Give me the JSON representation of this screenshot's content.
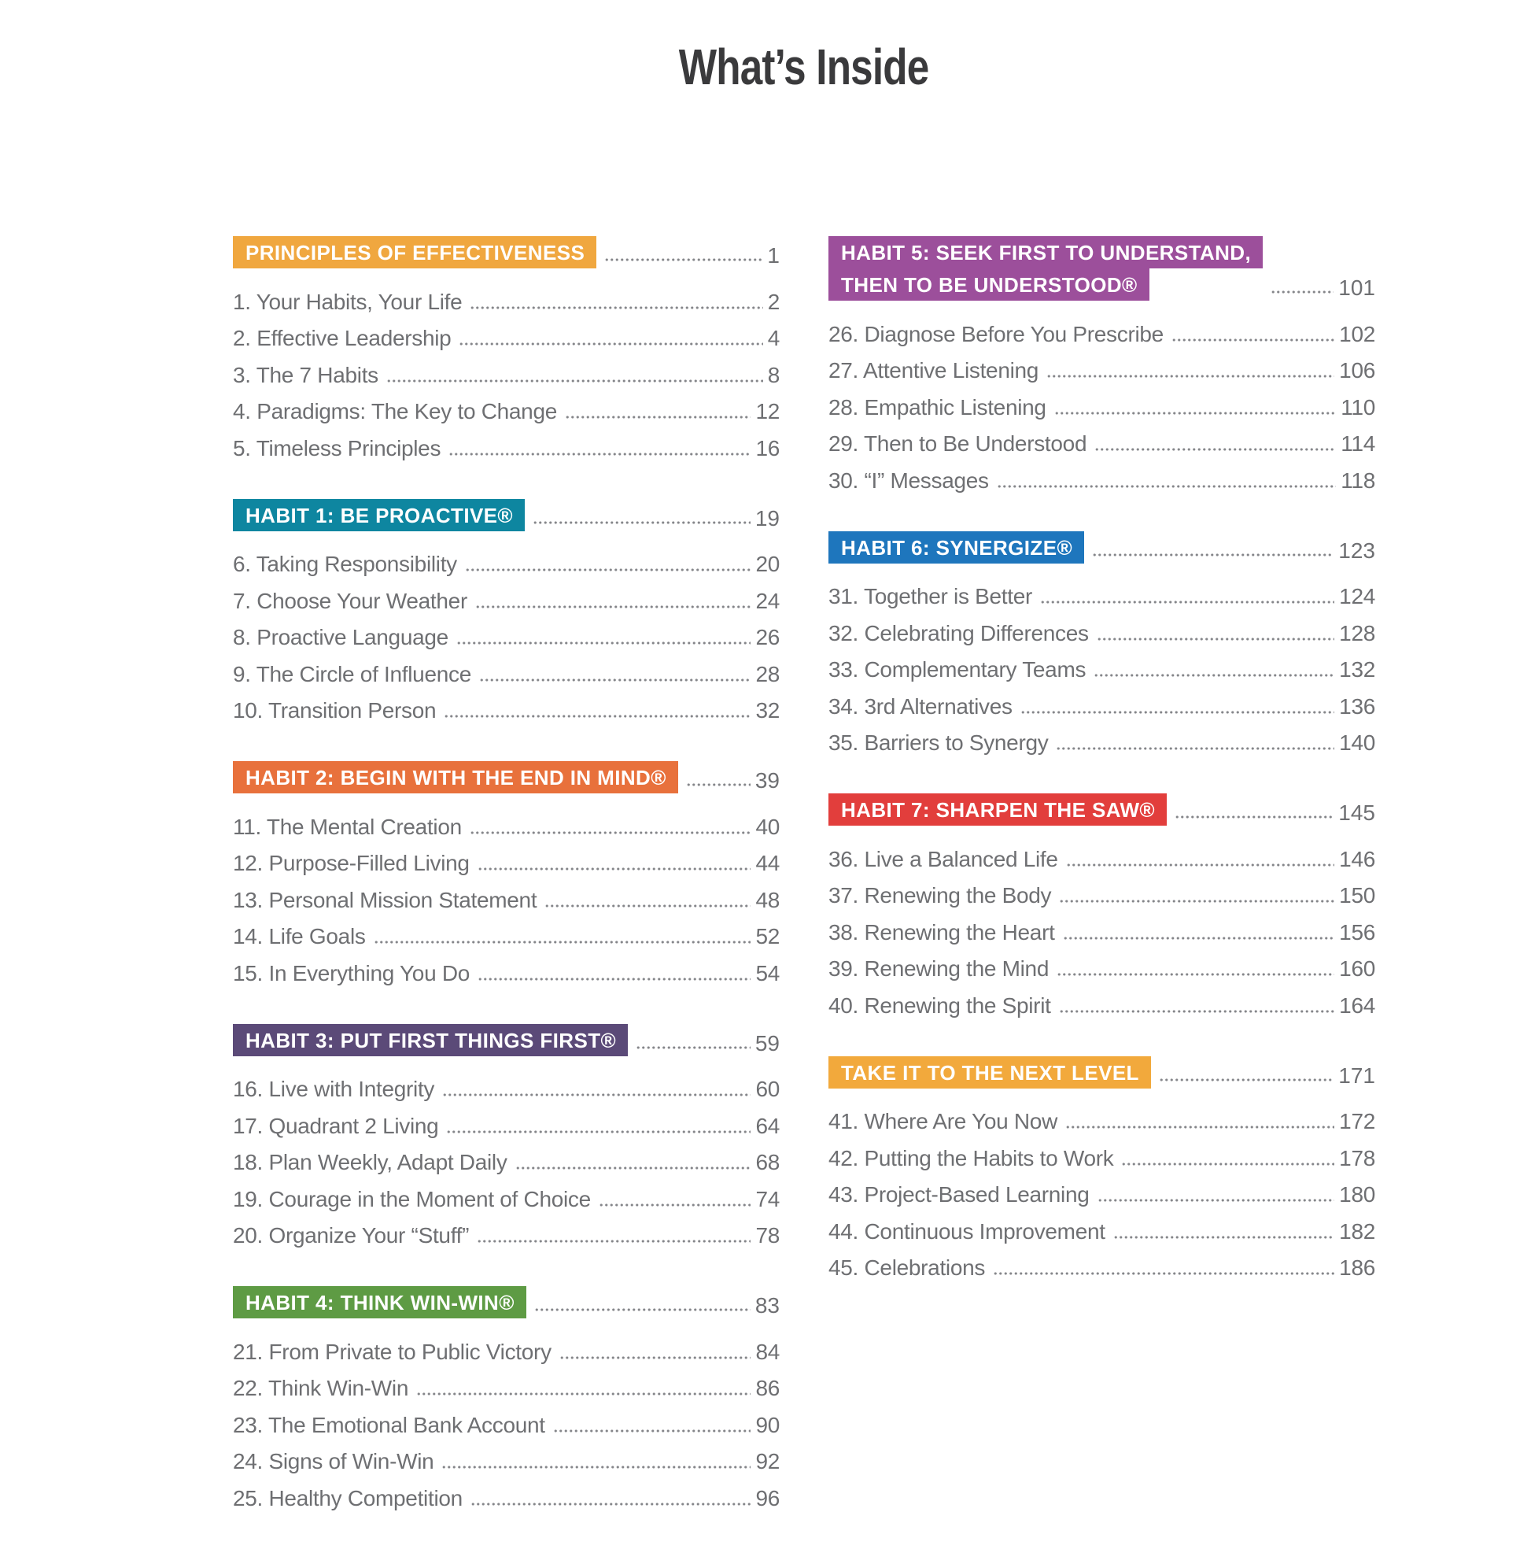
{
  "page_title": "What’s Inside",
  "text_colors": {
    "title": "#3a3a3c",
    "entry": "#6e6f72",
    "badge_text": "#ffffff"
  },
  "toc": {
    "columns": [
      {
        "sections": [
          {
            "header_lines": [
              "PRINCIPLES OF EFFECTIVENESS"
            ],
            "page": "1",
            "color": "#F0A73F",
            "entries": [
              {
                "label": "1. Your Habits, Your Life",
                "page": "2"
              },
              {
                "label": "2. Effective Leadership",
                "page": "4"
              },
              {
                "label": "3. The 7 Habits",
                "page": "8"
              },
              {
                "label": "4. Paradigms: The Key to Change",
                "page": "12"
              },
              {
                "label": "5. Timeless Principles",
                "page": "16"
              }
            ]
          },
          {
            "header_lines": [
              "HABIT 1: BE PROACTIVE®"
            ],
            "page": "19",
            "color": "#0E86A0",
            "entries": [
              {
                "label": "6. Taking Responsibility",
                "page": "20"
              },
              {
                "label": "7. Choose Your Weather",
                "page": "24"
              },
              {
                "label": "8. Proactive Language",
                "page": "26"
              },
              {
                "label": "9. The Circle of Influence",
                "page": "28"
              },
              {
                "label": "10. Transition Person",
                "page": "32"
              }
            ]
          },
          {
            "header_lines": [
              "HABIT 2: BEGIN WITH THE END IN MIND®"
            ],
            "page": "39",
            "color": "#E8713C",
            "entries": [
              {
                "label": "11. The Mental Creation",
                "page": "40"
              },
              {
                "label": "12. Purpose-Filled Living",
                "page": "44"
              },
              {
                "label": "13. Personal Mission Statement",
                "page": "48"
              },
              {
                "label": "14. Life Goals",
                "page": "52"
              },
              {
                "label": "15. In Everything You Do",
                "page": "54"
              }
            ]
          },
          {
            "header_lines": [
              "HABIT 3: PUT FIRST THINGS FIRST®"
            ],
            "page": "59",
            "color": "#5B4A78",
            "entries": [
              {
                "label": "16. Live with Integrity",
                "page": "60"
              },
              {
                "label": "17. Quadrant 2 Living",
                "page": "64"
              },
              {
                "label": "18. Plan Weekly, Adapt Daily",
                "page": "68"
              },
              {
                "label": "19. Courage in the Moment of Choice",
                "page": "74"
              },
              {
                "label": "20. Organize Your “Stuff”",
                "page": "78"
              }
            ]
          },
          {
            "header_lines": [
              "HABIT 4: THINK WIN-WIN®"
            ],
            "page": "83",
            "color": "#5E9B44",
            "entries": [
              {
                "label": "21. From Private to Public Victory",
                "page": "84"
              },
              {
                "label": "22. Think Win-Win",
                "page": "86"
              },
              {
                "label": "23. The Emotional Bank Account",
                "page": "90"
              },
              {
                "label": "24. Signs of Win-Win",
                "page": "92"
              },
              {
                "label": "25. Healthy Competition",
                "page": "96"
              }
            ]
          }
        ]
      },
      {
        "sections": [
          {
            "header_lines": [
              "HABIT 5: SEEK FIRST TO UNDERSTAND,",
              "THEN TO BE UNDERSTOOD®"
            ],
            "page": "101",
            "color": "#9C4F9B",
            "entries": [
              {
                "label": "26. Diagnose Before You Prescribe",
                "page": "102"
              },
              {
                "label": "27. Attentive Listening",
                "page": "106"
              },
              {
                "label": "28. Empathic Listening",
                "page": "110"
              },
              {
                "label": "29. Then to Be Understood",
                "page": "114"
              },
              {
                "label": "30. “I” Messages",
                "page": "118"
              }
            ]
          },
          {
            "header_lines": [
              "HABIT 6: SYNERGIZE®"
            ],
            "page": "123",
            "color": "#1E76BD",
            "entries": [
              {
                "label": "31. Together is Better",
                "page": "124"
              },
              {
                "label": "32. Celebrating Differences",
                "page": "128"
              },
              {
                "label": "33. Complementary Teams",
                "page": "132"
              },
              {
                "label": "34. 3rd Alternatives",
                "page": "136"
              },
              {
                "label": "35. Barriers to Synergy",
                "page": "140"
              }
            ]
          },
          {
            "header_lines": [
              "HABIT 7: SHARPEN THE SAW®"
            ],
            "page": "145",
            "color": "#E23E3C",
            "entries": [
              {
                "label": "36. Live a Balanced Life",
                "page": "146"
              },
              {
                "label": "37. Renewing the Body",
                "page": "150"
              },
              {
                "label": "38. Renewing the Heart",
                "page": "156"
              },
              {
                "label": "39. Renewing the Mind",
                "page": "160"
              },
              {
                "label": "40. Renewing the Spirit",
                "page": "164"
              }
            ]
          },
          {
            "header_lines": [
              "TAKE IT TO THE NEXT LEVEL"
            ],
            "page": "171",
            "color": "#F2A93C",
            "entries": [
              {
                "label": "41. Where Are You Now",
                "page": "172"
              },
              {
                "label": "42. Putting the Habits to Work",
                "page": "178"
              },
              {
                "label": "43. Project-Based Learning",
                "page": "180"
              },
              {
                "label": "44. Continuous Improvement",
                "page": "182"
              },
              {
                "label": "45. Celebrations",
                "page": "186"
              }
            ]
          }
        ]
      }
    ]
  }
}
